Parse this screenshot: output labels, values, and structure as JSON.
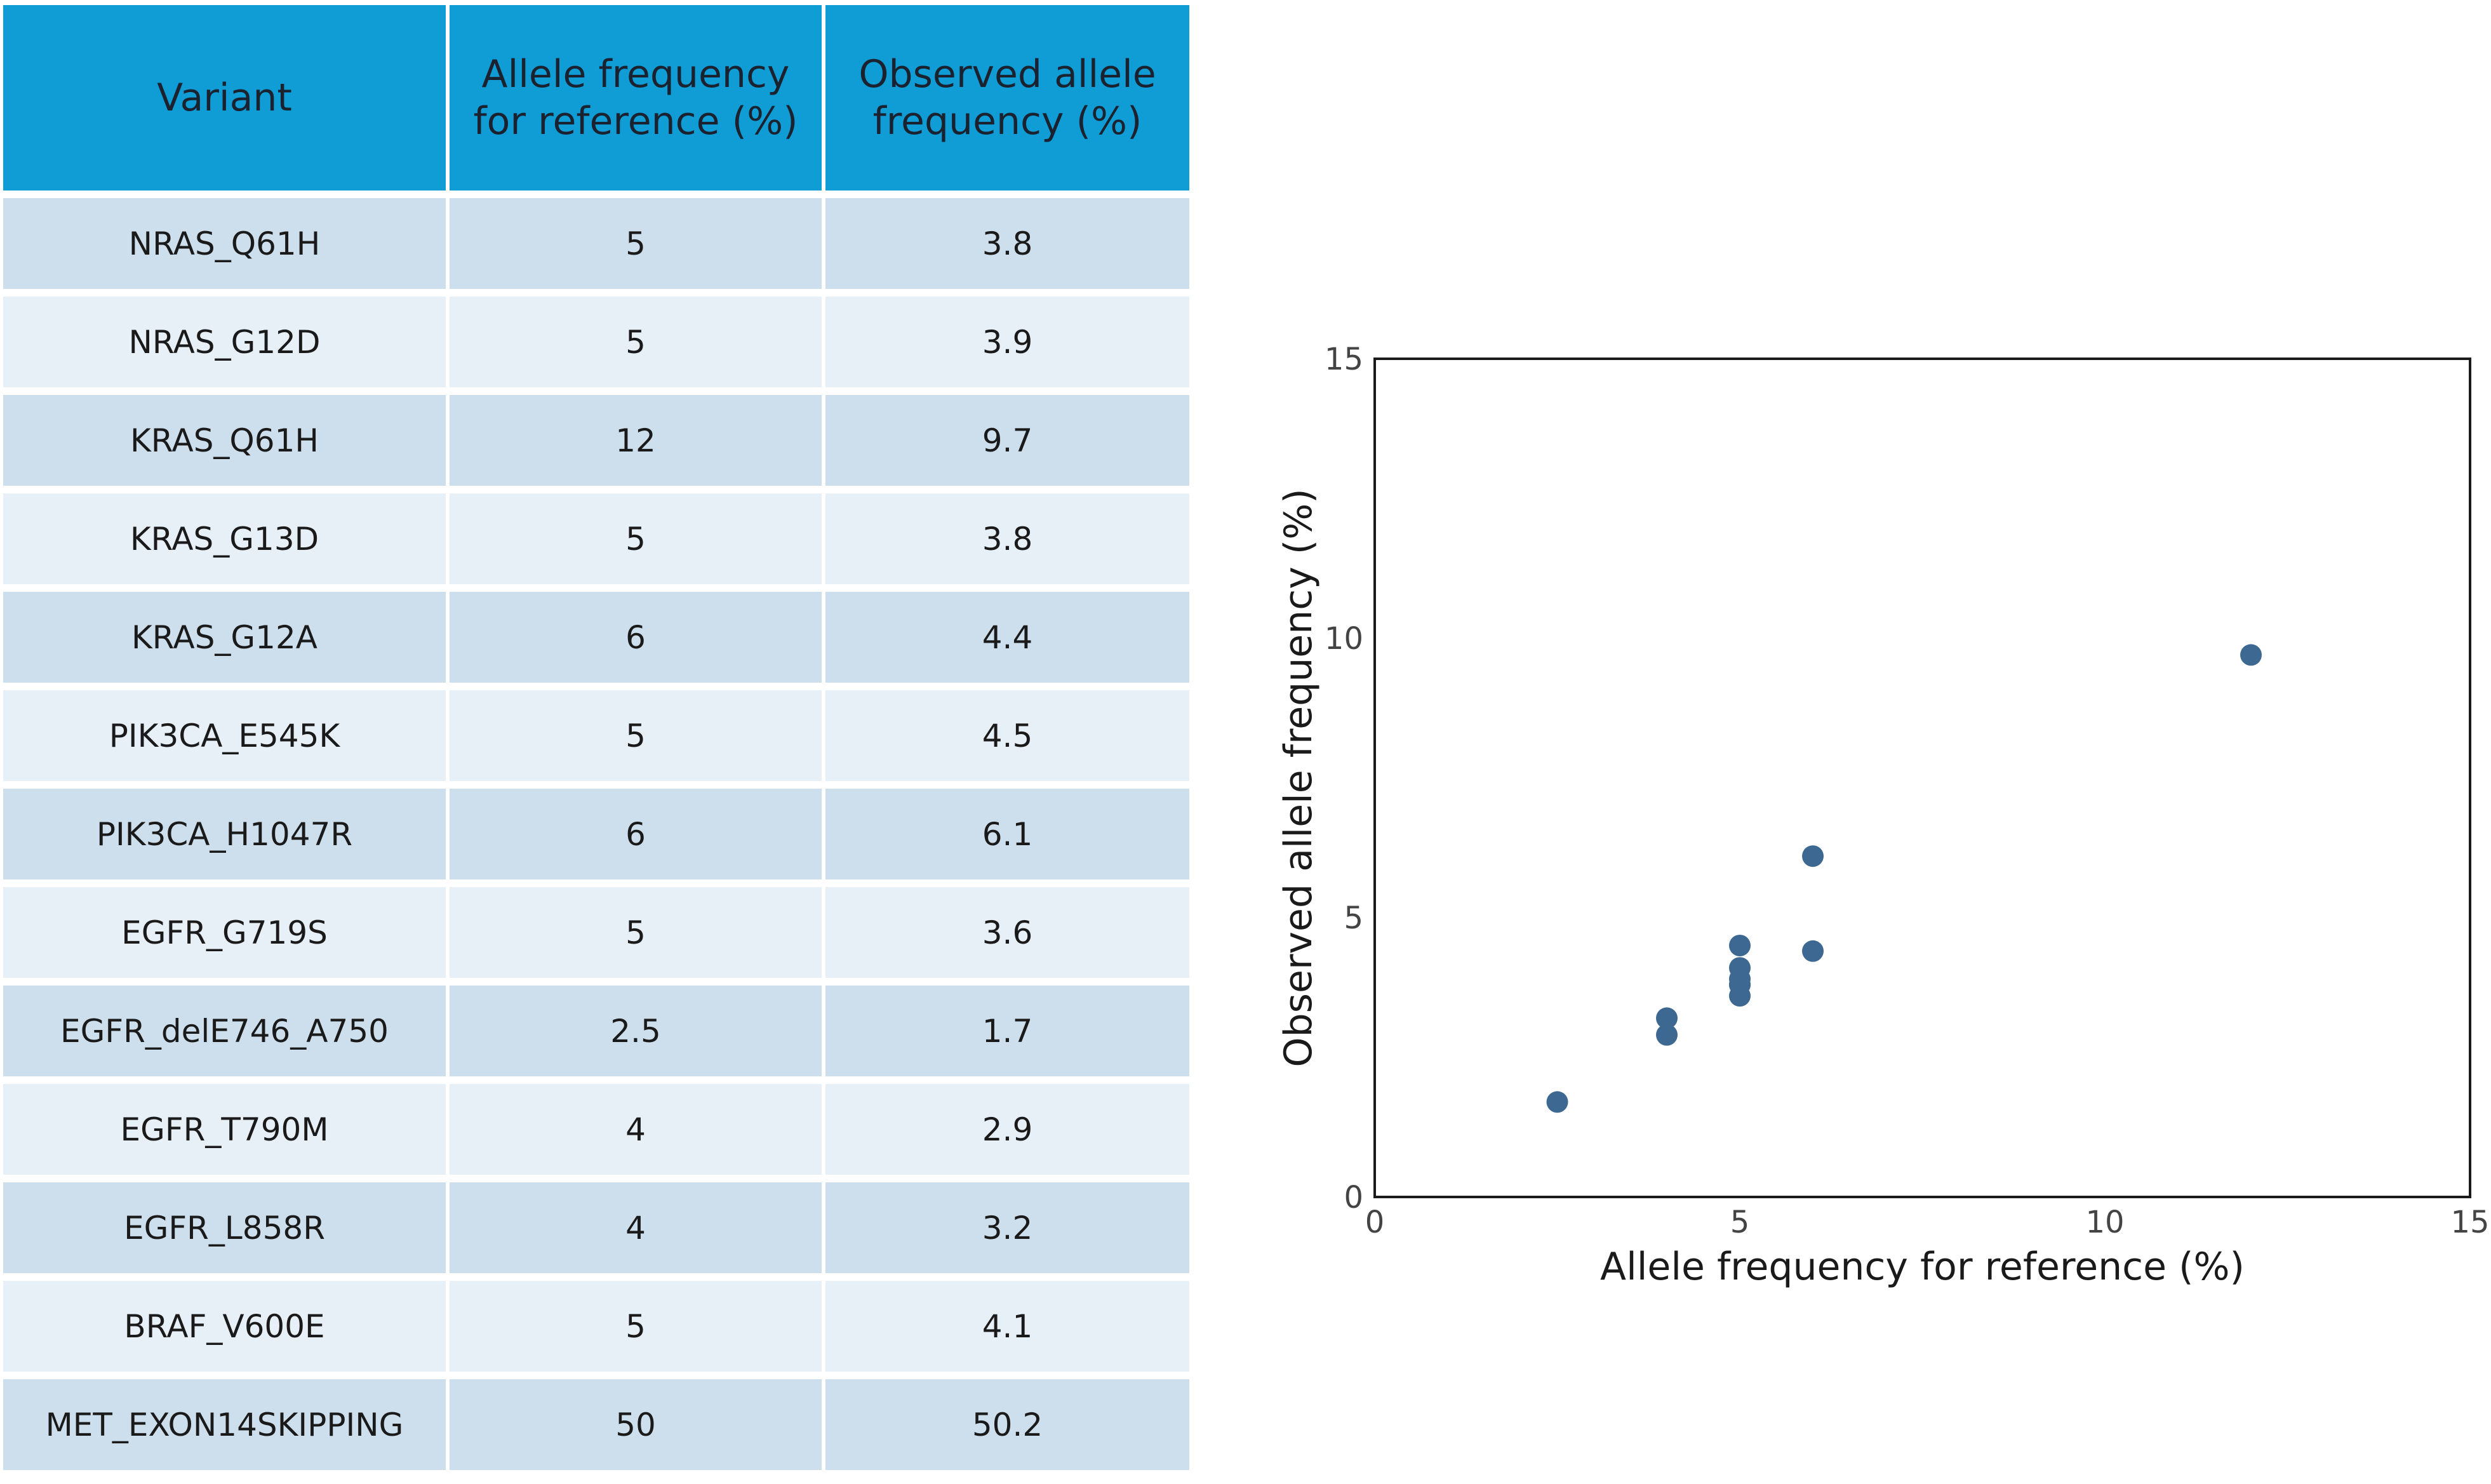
{
  "table": {
    "headers": [
      "Variant",
      "Allele frequency for reference (%)",
      "Observed allele frequency (%)"
    ],
    "rows": [
      [
        "NRAS_Q61H",
        "5",
        "3.8"
      ],
      [
        "NRAS_G12D",
        "5",
        "3.9"
      ],
      [
        "KRAS_Q61H",
        "12",
        "9.7"
      ],
      [
        "KRAS_G13D",
        "5",
        "3.8"
      ],
      [
        "KRAS_G12A",
        "6",
        "4.4"
      ],
      [
        "PIK3CA_E545K",
        "5",
        "4.5"
      ],
      [
        "PIK3CA_H1047R",
        "6",
        "6.1"
      ],
      [
        "EGFR_G719S",
        "5",
        "3.6"
      ],
      [
        "EGFR_delE746_A750",
        "2.5",
        "1.7"
      ],
      [
        "EGFR_T790M",
        "4",
        "2.9"
      ],
      [
        "EGFR_L858R",
        "4",
        "3.2"
      ],
      [
        "BRAF_V600E",
        "5",
        "4.1"
      ],
      [
        "MET_EXON14SKIPPING",
        "50",
        "50.2"
      ]
    ],
    "colors": {
      "header_bg": "#109dd6",
      "row_odd": "#cddfed",
      "row_even": "#e7eff7"
    }
  },
  "chart_data": {
    "type": "scatter",
    "xlabel": "Allele frequency for reference (%)",
    "ylabel": "Observed allele frequency (%)",
    "xlim": [
      0,
      15
    ],
    "ylim": [
      0,
      15
    ],
    "xticks": [
      0,
      5,
      10,
      15
    ],
    "yticks": [
      0,
      5,
      10,
      15
    ],
    "grid": false,
    "marker_color": "#3d6891",
    "points": [
      {
        "x": 5,
        "y": 3.8
      },
      {
        "x": 5,
        "y": 3.9
      },
      {
        "x": 12,
        "y": 9.7
      },
      {
        "x": 5,
        "y": 3.8
      },
      {
        "x": 6,
        "y": 4.4
      },
      {
        "x": 5,
        "y": 4.5
      },
      {
        "x": 6,
        "y": 6.1
      },
      {
        "x": 5,
        "y": 3.6
      },
      {
        "x": 2.5,
        "y": 1.7
      },
      {
        "x": 4,
        "y": 2.9
      },
      {
        "x": 4,
        "y": 3.2
      },
      {
        "x": 5,
        "y": 4.1
      }
    ]
  }
}
